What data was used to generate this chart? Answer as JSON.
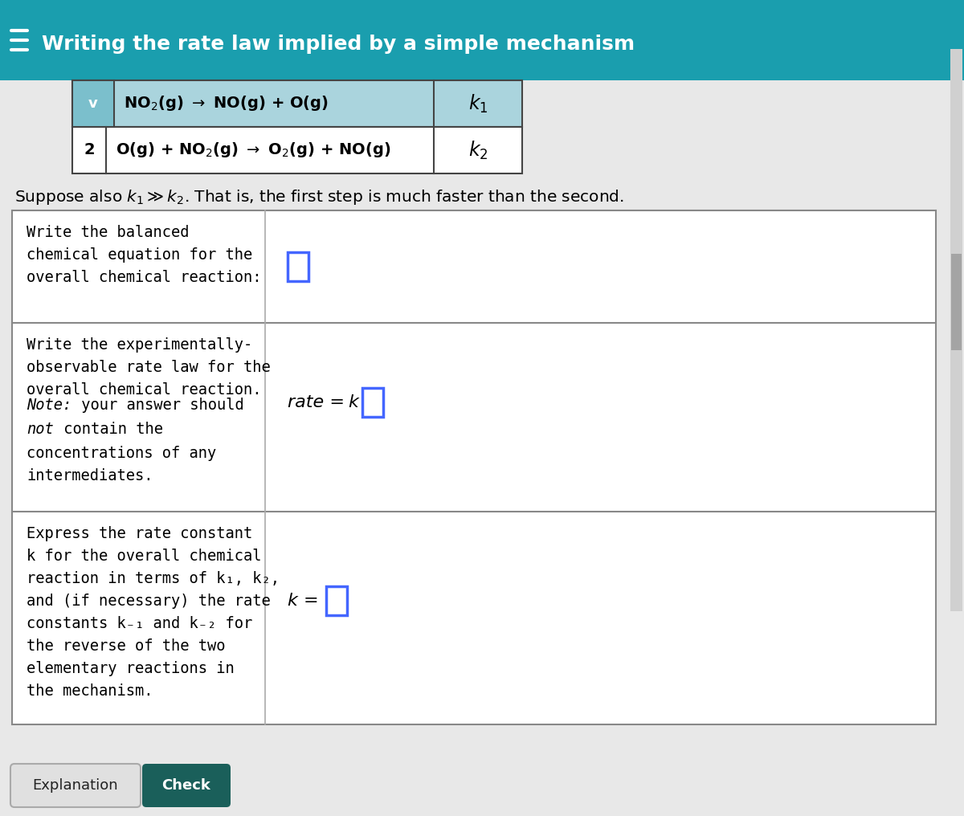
{
  "title_text": "Writing the rate law implied by a simple mechanism",
  "header_bg_color": "#1a9eae",
  "header_text_color": "#ffffff",
  "body_bg_color": "#e8e8e8",
  "table_border_color": "#888888",
  "step1_row_bg": "#aad4dd",
  "step1_check_bg": "#7bbfcc",
  "suppose_text": "Suppose also $k_1$$\\gg$$k_2$. That is, the first step is much faster than the second.",
  "row1_left_lines": [
    "Write the balanced",
    "chemical equation for the",
    "overall chemical reaction:"
  ],
  "row2_left_line1": [
    "Write the experimentally-",
    "observable rate law for the",
    "overall chemical reaction."
  ],
  "row2_left_line2": [
    "Note: your answer should",
    "not contain the",
    "concentrations of any",
    "intermediates."
  ],
  "row3_left_lines": [
    "Express the rate constant",
    "k for the overall chemical",
    "reaction in terms of k₁, k₂,",
    "and (if necessary) the rate",
    "constants k₋₁ and k₋₂ for",
    "the reverse of the two",
    "elementary reactions in",
    "the mechanism."
  ],
  "btn1_text": "Explanation",
  "btn2_text": "Check",
  "btn2_bg": "#1a5f5a",
  "input_box_color": "#4466ff"
}
